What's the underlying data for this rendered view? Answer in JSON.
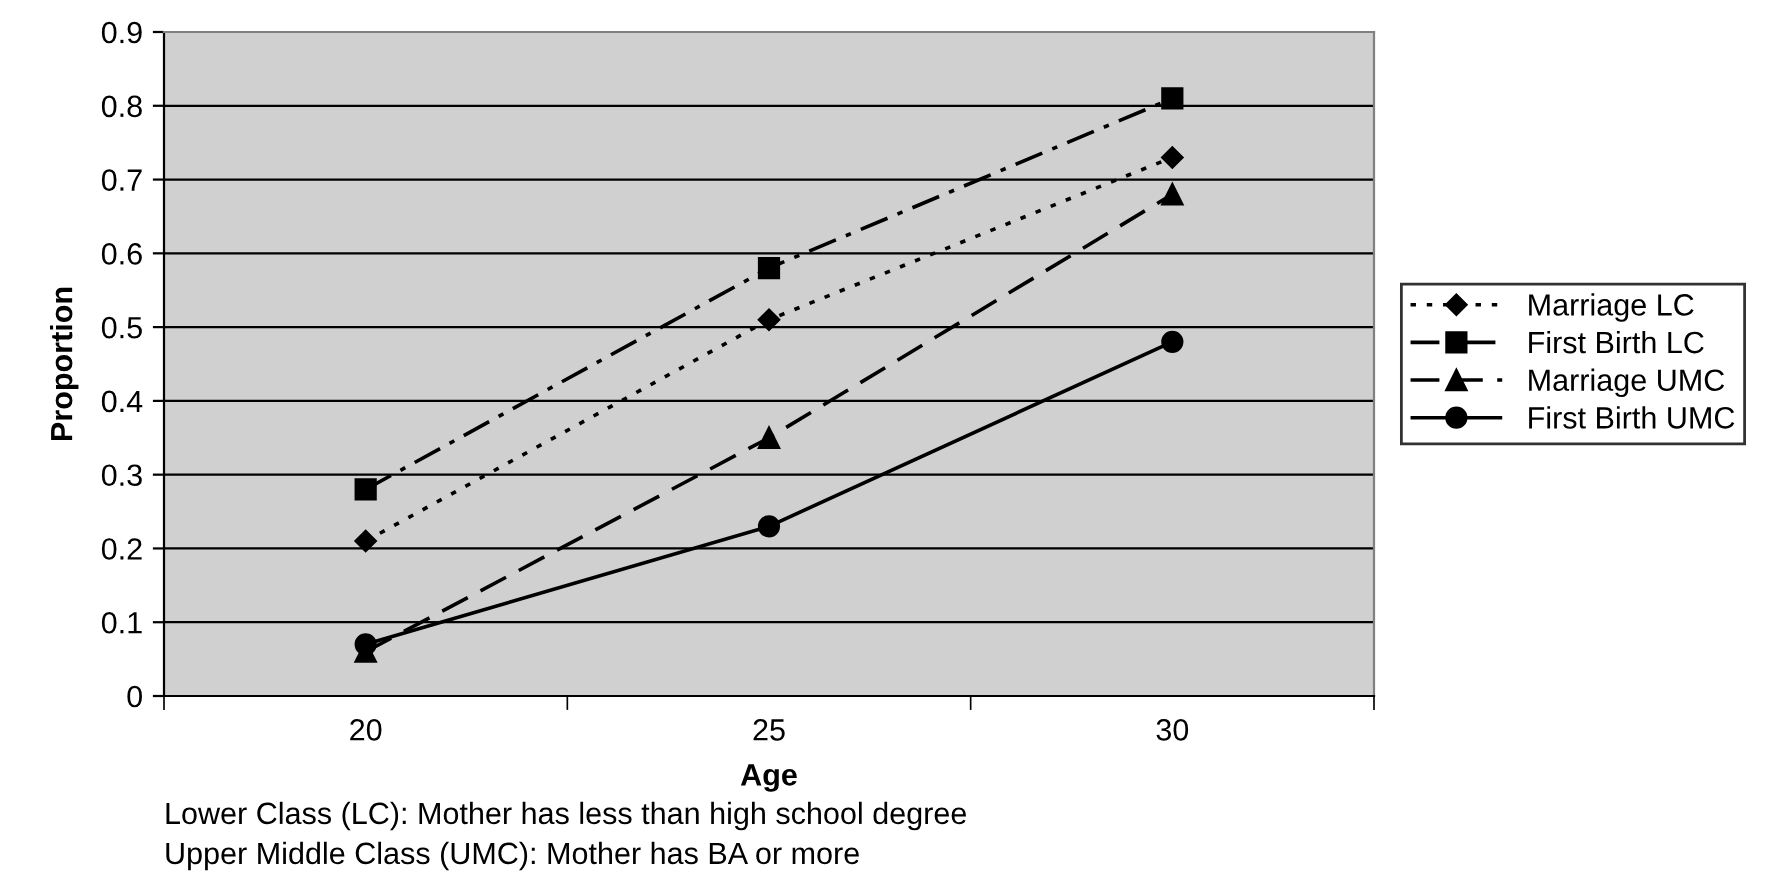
{
  "chart_data": {
    "type": "line",
    "xlabel": "Age",
    "ylabel": "Proportion",
    "categories": [
      "20",
      "25",
      "30"
    ],
    "series": [
      {
        "name": "Marriage LC",
        "color": "#000000",
        "values": [
          0.21,
          0.51,
          0.73
        ],
        "marker": "diamond",
        "line_style": "dotted"
      },
      {
        "name": "First Birth LC",
        "color": "#000000",
        "values": [
          0.28,
          0.58,
          0.81
        ],
        "marker": "square",
        "line_style": "dashdot"
      },
      {
        "name": "Marriage UMC",
        "color": "#000000",
        "values": [
          0.06,
          0.35,
          0.68
        ],
        "marker": "triangle",
        "line_style": "dashed"
      },
      {
        "name": "First Birth UMC",
        "color": "#000000",
        "values": [
          0.07,
          0.23,
          0.48
        ],
        "marker": "circle",
        "line_style": "solid"
      }
    ],
    "ylim": [
      0,
      0.9
    ],
    "yticks": [
      0,
      0.1,
      0.2,
      0.3,
      0.4,
      0.5,
      0.6,
      0.7,
      0.8,
      0.9
    ],
    "grid": "y",
    "legend": "right",
    "annotations": [
      "Lower Class (LC): Mother has less than high school degree",
      "Upper Middle Class (UMC): Mother has BA or more"
    ]
  }
}
